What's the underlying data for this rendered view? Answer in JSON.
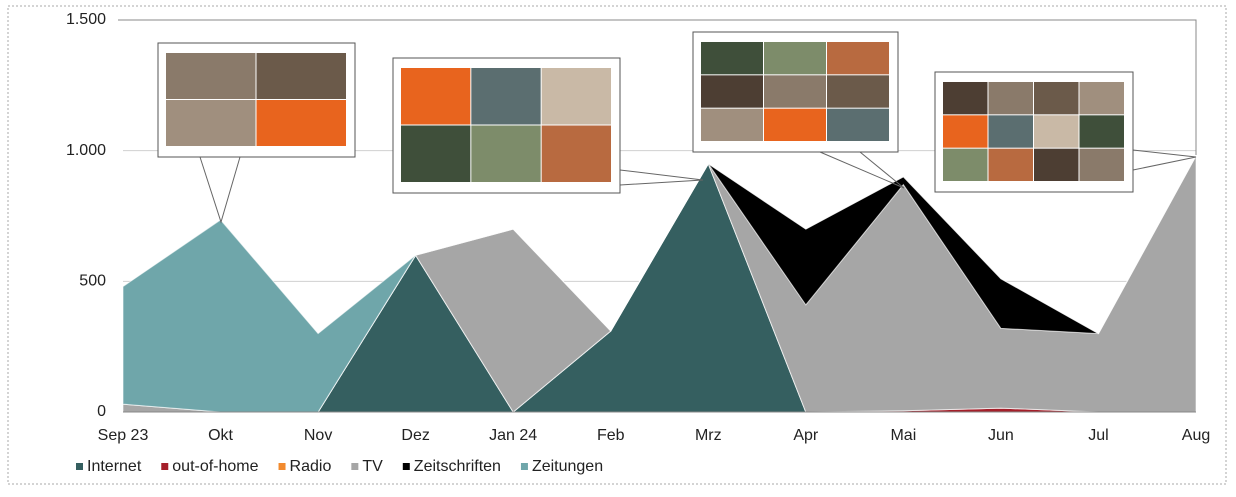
{
  "chart_data": {
    "type": "stacked_area",
    "categories": [
      "Sep 23",
      "Okt",
      "Nov",
      "Dez",
      "Jan 24",
      "Feb",
      "Mrz",
      "Apr",
      "Mai",
      "Jun",
      "Jul",
      "Aug"
    ],
    "series": [
      {
        "name": "Internet",
        "color": "#355f60",
        "values": [
          0,
          0,
          0,
          600,
          0,
          310,
          950,
          0,
          0,
          0,
          0,
          0
        ]
      },
      {
        "name": "out-of-home",
        "color": "#a51f2a",
        "values": [
          0,
          0,
          0,
          0,
          0,
          0,
          0,
          0,
          5,
          15,
          0,
          0
        ]
      },
      {
        "name": "Radio",
        "color": "#f28a2e",
        "values": [
          0,
          0,
          0,
          0,
          0,
          0,
          0,
          0,
          0,
          0,
          0,
          0
        ]
      },
      {
        "name": "TV",
        "color": "#a6a6a6",
        "values": [
          30,
          0,
          0,
          0,
          700,
          0,
          0,
          410,
          865,
          305,
          300,
          980
        ]
      },
      {
        "name": "Zeitschriften",
        "color": "#000000",
        "values": [
          0,
          0,
          0,
          0,
          0,
          0,
          0,
          290,
          30,
          190,
          0,
          0
        ]
      },
      {
        "name": "Zeitungen",
        "color": "#6fa6aa",
        "values": [
          450,
          735,
          300,
          0,
          0,
          0,
          0,
          0,
          0,
          0,
          0,
          0
        ]
      }
    ],
    "ylim": [
      0,
      1500
    ],
    "yticks": [
      0,
      500,
      {
        "value": 1000,
        "label": "1.000"
      },
      {
        "value": 1500,
        "label": "1.500"
      }
    ],
    "grid": true,
    "legend": "bottom"
  }
}
